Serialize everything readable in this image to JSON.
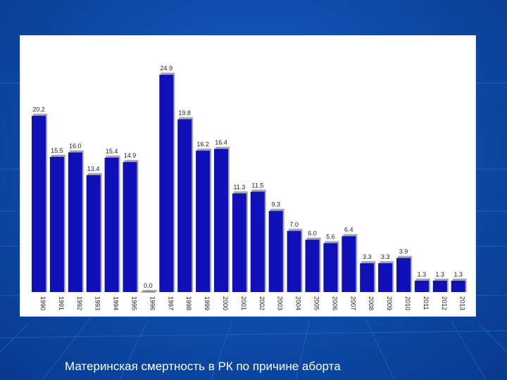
{
  "colors": {
    "background": "#0d4aa8",
    "bar": "#1010b8",
    "bar_shadow": "#a8a8a8",
    "panel": "#ffffff",
    "caption_text": "#ffffff"
  },
  "caption": "Материнская смертность в РК по причине аборта",
  "chart_data": {
    "type": "bar",
    "title": "",
    "xlabel": "",
    "ylabel": "",
    "grid": false,
    "legend": "none",
    "ylim": [
      0,
      25
    ],
    "categories": [
      "1990",
      "1991",
      "1992",
      "1993",
      "1994",
      "1995",
      "1996",
      "1997",
      "1998",
      "1999",
      "2000",
      "2001",
      "2002",
      "2003",
      "2004",
      "2005",
      "2006",
      "2007",
      "2008",
      "2009",
      "2010",
      "2011",
      "2012",
      "2013"
    ],
    "value_labels": [
      "20.2",
      "15.5",
      "16.0",
      "13.4",
      "15.4",
      "14.9",
      "0.0",
      "24.9",
      "19.8",
      "16.2",
      "16.4",
      "11.3",
      "11.5",
      "9.3",
      "7.0",
      "6.0",
      "5.6",
      "6.4",
      "3.3",
      "3.3",
      "3.9",
      "1.3",
      "1.3",
      "1.3"
    ],
    "values": [
      20.2,
      15.5,
      16.0,
      13.4,
      15.4,
      14.9,
      0.0,
      24.9,
      19.8,
      16.2,
      16.4,
      11.3,
      11.5,
      9.3,
      7.0,
      6.0,
      5.6,
      6.4,
      3.3,
      3.3,
      3.9,
      1.3,
      1.3,
      1.3
    ]
  }
}
